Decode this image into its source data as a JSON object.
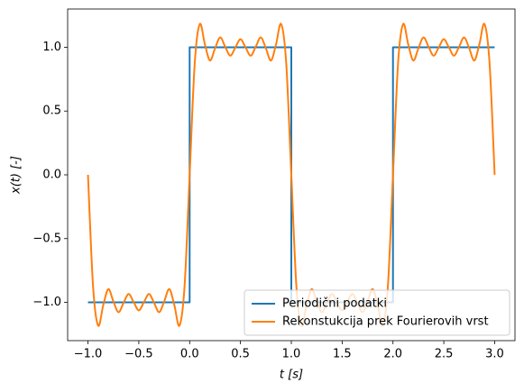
{
  "chart_data": {
    "type": "line",
    "xlabel": "t [s]",
    "ylabel": "x(t) [-]",
    "xlim": [
      -1.2,
      3.2
    ],
    "ylim": [
      -1.3,
      1.3
    ],
    "xticks": [
      {
        "value": -1,
        "label": "−1.0"
      },
      {
        "value": -0.5,
        "label": "−0.5"
      },
      {
        "value": 0,
        "label": "0.0"
      },
      {
        "value": 0.5,
        "label": "0.5"
      },
      {
        "value": 1,
        "label": "1.0"
      },
      {
        "value": 1.5,
        "label": "1.5"
      },
      {
        "value": 2,
        "label": "2.0"
      },
      {
        "value": 2.5,
        "label": "2.5"
      },
      {
        "value": 3,
        "label": "3.0"
      }
    ],
    "yticks": [
      {
        "value": -1,
        "label": "−1.0"
      },
      {
        "value": -0.5,
        "label": "−0.5"
      },
      {
        "value": 0,
        "label": "0.0"
      },
      {
        "value": 0.5,
        "label": "0.5"
      },
      {
        "value": 1,
        "label": "1.0"
      }
    ],
    "grid": false,
    "legend": "lower right",
    "series": [
      {
        "name": "Periodični podatki",
        "color": "#1f77b4",
        "x": [
          -1,
          0,
          0,
          1,
          1,
          2,
          2,
          3
        ],
        "values": [
          -1,
          -1,
          1,
          1,
          -1,
          -1,
          1,
          1
        ]
      },
      {
        "name": "Rekonstukcija prek Fourierovih vrst",
        "color": "#ff7f0e",
        "x": [
          -1,
          -0.95,
          -0.9,
          -0.85,
          -0.8,
          -0.75,
          -0.7,
          -0.65,
          -0.6,
          -0.55,
          -0.5,
          -0.45,
          -0.4,
          -0.35,
          -0.3,
          -0.25,
          -0.2,
          -0.15,
          -0.1,
          -0.05,
          0,
          0.05,
          0.1,
          0.15,
          0.2,
          0.25,
          0.3,
          0.35,
          0.4,
          0.45,
          0.5,
          0.55,
          0.6,
          0.65,
          0.7,
          0.75,
          0.8,
          0.85,
          0.9,
          0.95,
          1,
          1.05,
          1.1,
          1.15,
          1.2,
          1.25,
          1.3,
          1.35,
          1.4,
          1.45,
          1.5,
          1.55,
          1.6,
          1.65,
          1.7,
          1.75,
          1.8,
          1.85,
          1.9,
          1.95,
          2,
          2.05,
          2.1,
          2.15,
          2.2,
          2.25,
          2.3,
          2.35,
          2.4,
          2.45,
          2.5,
          2.55,
          2.6,
          2.65,
          2.7,
          2.75,
          2.8,
          2.85,
          2.9,
          2.95,
          3
        ],
        "values": [
          0,
          -0.874,
          -1.182,
          -1.023,
          -0.896,
          -0.992,
          -1.077,
          -1.004,
          -0.934,
          -0.999,
          -1.063,
          -0.999,
          -0.934,
          -1.004,
          -1.077,
          -0.992,
          -0.896,
          -1.023,
          -1.182,
          -0.874,
          0,
          0.874,
          1.182,
          1.023,
          0.896,
          0.992,
          1.077,
          1.004,
          0.934,
          0.999,
          1.063,
          0.999,
          0.934,
          1.004,
          1.077,
          0.992,
          0.896,
          1.023,
          1.182,
          0.874,
          0,
          -0.874,
          -1.182,
          -1.023,
          -0.896,
          -0.992,
          -1.077,
          -1.004,
          -0.934,
          -0.999,
          -1.063,
          -0.999,
          -0.934,
          -1.004,
          -1.077,
          -0.992,
          -0.896,
          -1.023,
          -1.182,
          -0.874,
          0,
          0.874,
          1.182,
          1.023,
          0.896,
          0.992,
          1.077,
          1.004,
          0.934,
          0.999,
          1.063,
          0.999,
          0.934,
          1.004,
          1.077,
          0.992,
          0.896,
          1.023,
          1.182,
          0.874,
          0
        ]
      }
    ]
  }
}
